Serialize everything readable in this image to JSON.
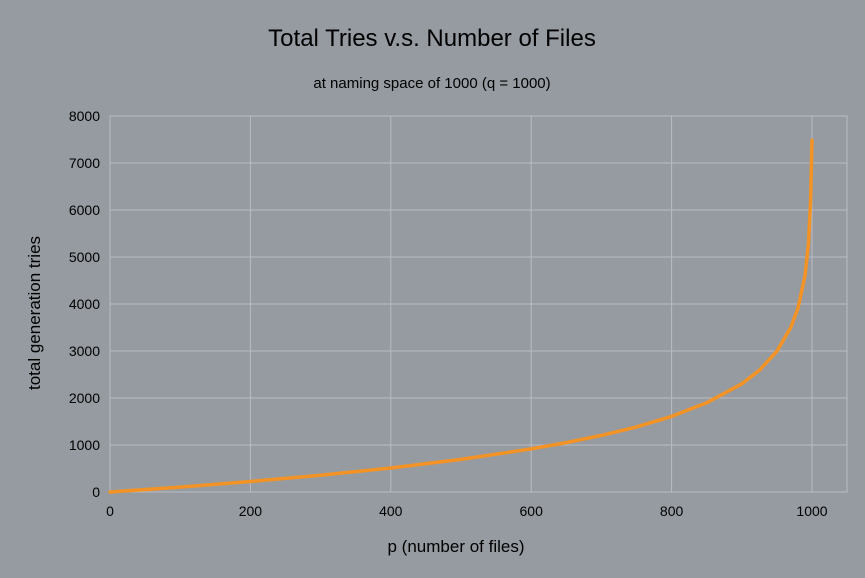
{
  "chart_data": {
    "type": "line",
    "title": "Total Tries v.s. Number of Files",
    "subtitle": "at naming space of 1000 (q = 1000)",
    "xlabel": "p (number of files)",
    "ylabel": "total generation tries",
    "xlim": [
      0,
      1000
    ],
    "ylim": [
      0,
      8000
    ],
    "x_ticks": [
      0,
      200,
      400,
      600,
      800,
      1000
    ],
    "y_ticks": [
      0,
      1000,
      2000,
      3000,
      4000,
      5000,
      6000,
      7000,
      8000
    ],
    "grid": true,
    "legend": "none",
    "series": [
      {
        "color": "#F39325",
        "x": [
          0,
          100,
          200,
          300,
          400,
          500,
          600,
          650,
          700,
          750,
          800,
          850,
          900,
          925,
          950,
          970,
          980,
          990,
          995,
          998,
          1000
        ],
        "y": [
          0,
          105,
          223,
          357,
          511,
          693,
          916,
          1050,
          1204,
          1386,
          1609,
          1897,
          2303,
          2590,
          2996,
          3507,
          3912,
          4605,
          5298,
          6213,
          7485
        ]
      }
    ]
  }
}
